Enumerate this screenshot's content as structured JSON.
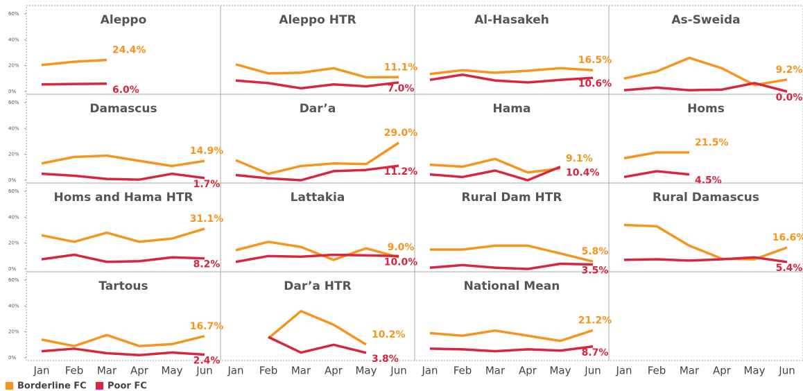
{
  "chart_data": {
    "type": "line",
    "categories": [
      "Jan",
      "Feb",
      "Mar",
      "Apr",
      "May",
      "Jun"
    ],
    "ylim": [
      0,
      60
    ],
    "yticks": [
      {
        "value": 0,
        "label": "0%"
      },
      {
        "value": 20,
        "label": "20%"
      },
      {
        "value": 40,
        "label": "40%"
      },
      {
        "value": 60,
        "label": "60%"
      }
    ],
    "series": [
      {
        "name": "Borderline FC",
        "color": "#f7941d"
      },
      {
        "name": "Poor FC",
        "color": "#d7263d"
      }
    ],
    "panels": [
      {
        "title": "Aleppo",
        "series": [
          {
            "values": [
              20.5,
              23,
              24.4,
              null,
              null,
              null
            ],
            "value_labels": [
              null,
              null,
              "24.4%",
              null,
              null,
              null
            ]
          },
          {
            "values": [
              5.5,
              5.8,
              6.0,
              null,
              null,
              null
            ],
            "value_labels": [
              null,
              null,
              "6.0%",
              null,
              null,
              null
            ]
          }
        ]
      },
      {
        "title": "Aleppo HTR",
        "series": [
          {
            "values": [
              21,
              14,
              14.5,
              18,
              11,
              11.1
            ],
            "value_labels": [
              null,
              null,
              null,
              null,
              null,
              "11.1%"
            ]
          },
          {
            "values": [
              8.5,
              6.5,
              2.5,
              5.5,
              4,
              7.0
            ],
            "value_labels": [
              null,
              null,
              null,
              null,
              null,
              "7.0%"
            ]
          }
        ]
      },
      {
        "title": "Al-Hasakeh",
        "series": [
          {
            "values": [
              13.5,
              16.5,
              14.5,
              16,
              18,
              16.5
            ],
            "value_labels": [
              null,
              null,
              null,
              null,
              null,
              "16.5%"
            ]
          },
          {
            "values": [
              9,
              13,
              8.5,
              7,
              9,
              10.6
            ],
            "value_labels": [
              null,
              null,
              null,
              null,
              null,
              "10.6%"
            ]
          }
        ]
      },
      {
        "title": "As-Sweida",
        "series": [
          {
            "values": [
              10,
              15.5,
              26,
              18,
              5,
              9.2
            ],
            "value_labels": [
              null,
              null,
              null,
              null,
              null,
              "9.2%"
            ]
          },
          {
            "values": [
              1,
              3,
              1,
              1.5,
              6.5,
              0.0
            ],
            "value_labels": [
              null,
              null,
              null,
              null,
              null,
              "0.0%"
            ]
          }
        ]
      },
      {
        "title": "Damascus",
        "series": [
          {
            "values": [
              13,
              18,
              19,
              15,
              11,
              14.9
            ],
            "value_labels": [
              null,
              null,
              null,
              null,
              null,
              "14.9%"
            ]
          },
          {
            "values": [
              5,
              3.5,
              1,
              0.5,
              5,
              1.7
            ],
            "value_labels": [
              null,
              null,
              null,
              null,
              null,
              "1.7%"
            ]
          }
        ]
      },
      {
        "title": "Dar’a",
        "series": [
          {
            "values": [
              15.5,
              5,
              11,
              13,
              12.5,
              29.0
            ],
            "value_labels": [
              null,
              null,
              null,
              null,
              null,
              "29.0%"
            ]
          },
          {
            "values": [
              4,
              1.5,
              0,
              7,
              8,
              11.2
            ],
            "value_labels": [
              null,
              null,
              null,
              null,
              null,
              "11.2%"
            ]
          }
        ]
      },
      {
        "title": "Hama",
        "series": [
          {
            "values": [
              12,
              10.5,
              16.5,
              6,
              9.1,
              null
            ],
            "value_labels": [
              null,
              null,
              null,
              null,
              "9.1%",
              null
            ]
          },
          {
            "values": [
              4.5,
              2.5,
              7.5,
              0,
              10.4,
              null
            ],
            "value_labels": [
              null,
              null,
              null,
              null,
              "10.4%",
              null
            ]
          }
        ]
      },
      {
        "title": "Homs",
        "series": [
          {
            "values": [
              17,
              21.5,
              21.5,
              null,
              null,
              null
            ],
            "value_labels": [
              null,
              null,
              "21.5%",
              null,
              null,
              null
            ]
          },
          {
            "values": [
              2.5,
              7,
              4.5,
              null,
              null,
              null
            ],
            "value_labels": [
              null,
              null,
              "4.5%",
              null,
              null,
              null
            ]
          }
        ]
      },
      {
        "title": "Homs and Hama HTR",
        "series": [
          {
            "values": [
              26,
              21,
              28,
              21,
              23.5,
              31.1
            ],
            "value_labels": [
              null,
              null,
              null,
              null,
              null,
              "31.1%"
            ]
          },
          {
            "values": [
              7.5,
              11,
              5.5,
              6,
              9,
              8.2
            ],
            "value_labels": [
              null,
              null,
              null,
              null,
              null,
              "8.2%"
            ]
          }
        ]
      },
      {
        "title": "Lattakia",
        "series": [
          {
            "values": [
              14.5,
              21,
              17,
              7,
              16,
              9.0
            ],
            "value_labels": [
              null,
              null,
              null,
              null,
              null,
              "9.0%"
            ]
          },
          {
            "values": [
              5.5,
              10,
              9.5,
              11,
              10.5,
              10.0
            ],
            "value_labels": [
              null,
              null,
              null,
              null,
              null,
              "10.0%"
            ]
          }
        ]
      },
      {
        "title": "Rural Dam HTR",
        "series": [
          {
            "values": [
              15,
              15,
              18,
              18,
              12,
              5.8
            ],
            "value_labels": [
              null,
              null,
              null,
              null,
              null,
              "5.8%"
            ]
          },
          {
            "values": [
              1,
              3,
              1,
              0,
              4,
              3.5
            ],
            "value_labels": [
              null,
              null,
              null,
              null,
              null,
              "3.5%"
            ]
          }
        ]
      },
      {
        "title": "Rural Damascus",
        "series": [
          {
            "values": [
              34,
              33,
              18,
              8,
              7.5,
              16.6
            ],
            "value_labels": [
              null,
              null,
              null,
              null,
              null,
              "16.6%"
            ]
          },
          {
            "values": [
              7,
              7.5,
              6.5,
              7.5,
              9,
              5.4
            ],
            "value_labels": [
              null,
              null,
              null,
              null,
              null,
              "5.4%"
            ]
          }
        ]
      },
      {
        "title": "Tartous",
        "series": [
          {
            "values": [
              14,
              9,
              17.5,
              9,
              10.5,
              16.7
            ],
            "value_labels": [
              null,
              null,
              null,
              null,
              null,
              "16.7%"
            ]
          },
          {
            "values": [
              5,
              7,
              3.5,
              2,
              4,
              2.4
            ],
            "value_labels": [
              null,
              null,
              null,
              null,
              null,
              "2.4%"
            ]
          }
        ]
      },
      {
        "title": "Dar’a HTR",
        "series": [
          {
            "values": [
              null,
              15,
              36,
              25.5,
              10.2,
              null
            ],
            "value_labels": [
              null,
              null,
              null,
              null,
              "10.2%",
              null
            ]
          },
          {
            "values": [
              null,
              16,
              4,
              10,
              3.8,
              null
            ],
            "value_labels": [
              null,
              null,
              null,
              null,
              "3.8%",
              null
            ]
          }
        ]
      },
      {
        "title": "National Mean",
        "series": [
          {
            "values": [
              19,
              17,
              21,
              17,
              13,
              21.2
            ],
            "value_labels": [
              null,
              null,
              null,
              null,
              null,
              "21.2%"
            ]
          },
          {
            "values": [
              7,
              6.5,
              5,
              6.5,
              5.5,
              8.7
            ],
            "value_labels": [
              null,
              null,
              null,
              null,
              null,
              "8.7%"
            ]
          }
        ]
      }
    ]
  }
}
